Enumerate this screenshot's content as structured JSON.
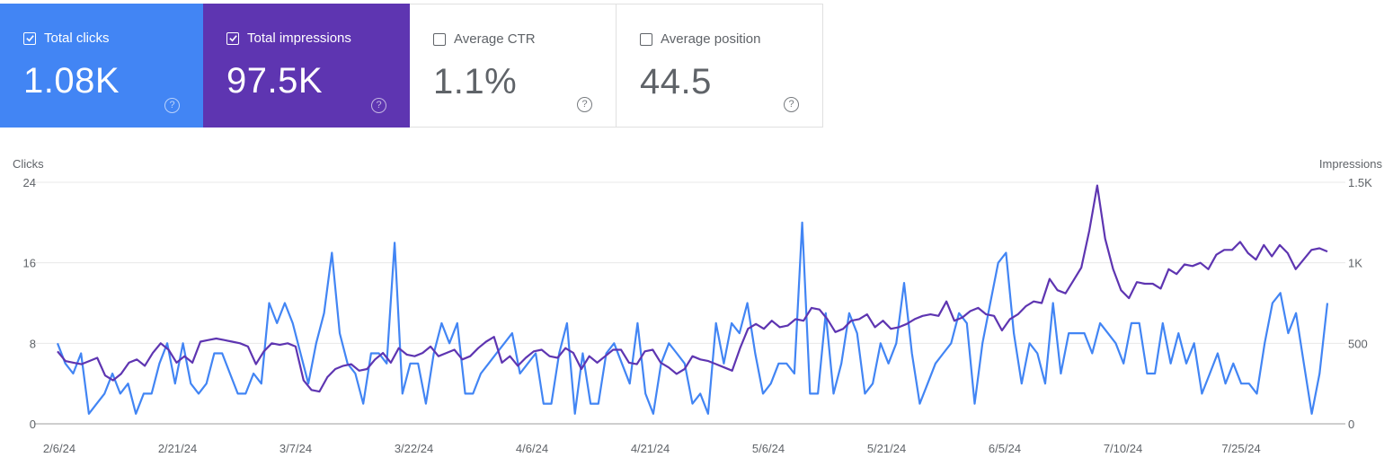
{
  "cards": [
    {
      "label": "Total clicks",
      "value": "1.08K",
      "checked": true,
      "color": "#4285f4"
    },
    {
      "label": "Total impressions",
      "value": "97.5K",
      "checked": true,
      "color": "#5e35b1"
    },
    {
      "label": "Average CTR",
      "value": "1.1%",
      "checked": false
    },
    {
      "label": "Average position",
      "value": "44.5",
      "checked": false
    }
  ],
  "help_glyph": "?",
  "chart_data": {
    "type": "line",
    "left_axis_label": "Clicks",
    "right_axis_label": "Impressions",
    "left_ticks": [
      "24",
      "16",
      "8",
      "0"
    ],
    "right_ticks": [
      "1.5K",
      "1K",
      "500",
      "0"
    ],
    "left_ylim": [
      0,
      24
    ],
    "right_ylim": [
      0,
      1500
    ],
    "x_tick_labels": [
      "2/6/24",
      "2/21/24",
      "3/7/24",
      "3/22/24",
      "4/6/24",
      "4/21/24",
      "5/6/24",
      "5/21/24",
      "6/5/24",
      "7/10/24",
      "7/25/24"
    ],
    "grid": true,
    "series": [
      {
        "name": "Clicks",
        "axis": "left",
        "color": "#4285f4",
        "values": [
          8,
          6,
          5,
          7,
          1,
          2,
          3,
          5,
          3,
          4,
          1,
          3,
          3,
          6,
          8,
          4,
          8,
          4,
          3,
          4,
          7,
          7,
          5,
          3,
          3,
          5,
          4,
          12,
          10,
          12,
          10,
          7,
          4,
          8,
          11,
          17,
          9,
          6,
          5,
          2,
          7,
          7,
          6,
          18,
          3,
          6,
          6,
          2,
          7,
          10,
          8,
          10,
          3,
          3,
          5,
          6,
          7,
          8,
          9,
          5,
          6,
          7,
          2,
          2,
          7,
          10,
          1,
          7,
          2,
          2,
          7,
          8,
          6,
          4,
          10,
          3,
          1,
          6,
          8,
          7,
          6,
          2,
          3,
          1,
          10,
          6,
          10,
          9,
          12,
          7,
          3,
          4,
          6,
          6,
          5,
          20,
          3,
          3,
          11,
          3,
          6,
          11,
          9,
          3,
          4,
          8,
          6,
          8,
          14,
          7,
          2,
          4,
          6,
          7,
          8,
          11,
          10,
          2,
          8,
          12,
          16,
          17,
          9,
          4,
          8,
          7,
          4,
          12,
          5,
          9,
          9,
          9,
          7,
          10,
          9,
          8,
          6,
          10,
          10,
          5,
          5,
          10,
          6,
          9,
          6,
          8,
          3,
          5,
          7,
          4,
          6,
          4,
          4,
          3,
          8,
          12,
          13,
          9,
          11,
          6,
          1,
          5,
          12
        ]
      },
      {
        "name": "Impressions",
        "axis": "right",
        "color": "#5e35b1",
        "values": [
          450,
          390,
          380,
          370,
          390,
          410,
          300,
          270,
          310,
          380,
          400,
          360,
          440,
          500,
          460,
          380,
          420,
          380,
          510,
          520,
          530,
          520,
          510,
          500,
          480,
          370,
          450,
          500,
          490,
          500,
          480,
          270,
          210,
          200,
          290,
          340,
          360,
          370,
          330,
          340,
          400,
          440,
          380,
          470,
          430,
          420,
          440,
          480,
          420,
          440,
          460,
          400,
          420,
          470,
          510,
          540,
          380,
          420,
          360,
          410,
          450,
          460,
          420,
          410,
          470,
          440,
          340,
          420,
          380,
          420,
          460,
          460,
          380,
          370,
          450,
          460,
          380,
          350,
          310,
          340,
          420,
          400,
          390,
          370,
          350,
          330,
          470,
          590,
          620,
          590,
          640,
          600,
          610,
          650,
          640,
          720,
          710,
          650,
          570,
          590,
          640,
          650,
          680,
          600,
          640,
          590,
          600,
          620,
          650,
          670,
          680,
          670,
          760,
          640,
          660,
          700,
          720,
          680,
          670,
          580,
          650,
          680,
          730,
          760,
          750,
          900,
          830,
          810,
          890,
          970,
          1200,
          1480,
          1150,
          960,
          830,
          780,
          880,
          870,
          870,
          840,
          960,
          930,
          990,
          980,
          1000,
          960,
          1050,
          1080,
          1080,
          1130,
          1060,
          1020,
          1110,
          1040,
          1110,
          1060,
          960,
          1020,
          1080,
          1090,
          1070
        ]
      }
    ]
  }
}
